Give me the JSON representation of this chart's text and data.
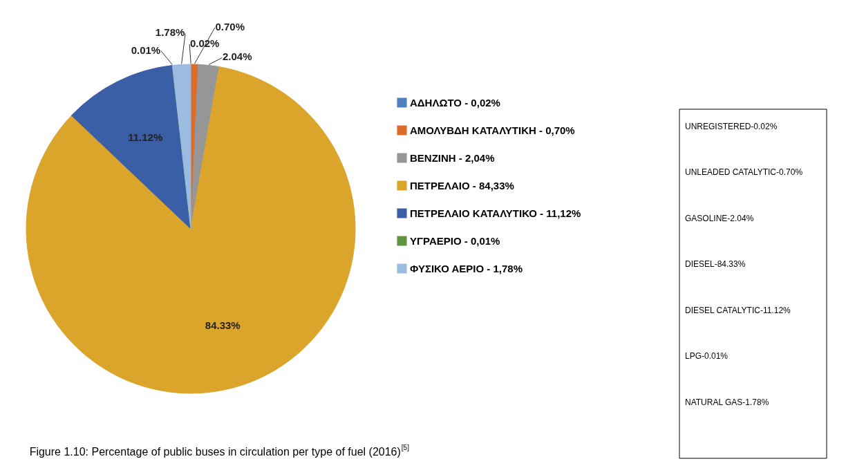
{
  "chart_data": {
    "type": "pie",
    "categories": [
      "ΑΔΗΛΩΤΟ  -  0,02%",
      "ΑΜΟΛΥΒΔΗ ΚΑΤΑΛΥΤΙΚΗ  -  0,70%",
      "ΒΕΝΖΙΝΗ  -  2,04%",
      "ΠΕΤΡΕΛΑΙΟ  -  84,33%",
      "ΠΕΤΡΕΛΑΙΟ ΚΑΤΑΛΥΤΙΚΟ  -  11,12%",
      "ΥΓΡΑΕΡΙΟ  -  0,01%",
      "ΦΥΣΙΚΟ ΑΕΡΙΟ  - 1,78%"
    ],
    "values": [
      0.02,
      0.7,
      2.04,
      84.33,
      11.12,
      0.01,
      1.78
    ],
    "value_labels": [
      "0.02%",
      "0.70%",
      "2.04%",
      "84.33%",
      "11.12%",
      "0.01%",
      "1.78%"
    ],
    "colors": [
      "#4f81bd",
      "#dd6b2a",
      "#969696",
      "#daa52a",
      "#3a5fa6",
      "#62953f",
      "#9bbbe0"
    ],
    "legend": "right",
    "annotations": [
      "Figure 1.10: Percentage of public buses in circulation per type of fuel (2016)$^{[5]}$",
      "UNREGISTERED-0.02%",
      "UNLEADED CATALYTIC-0.70%",
      "GASOLINE-2.04%",
      "DIESEL-84.33%",
      "DIESEL CATALYTIC-11.12%",
      "LPG-0.01%",
      "NATURAL GAS-1.78%"
    ]
  }
}
